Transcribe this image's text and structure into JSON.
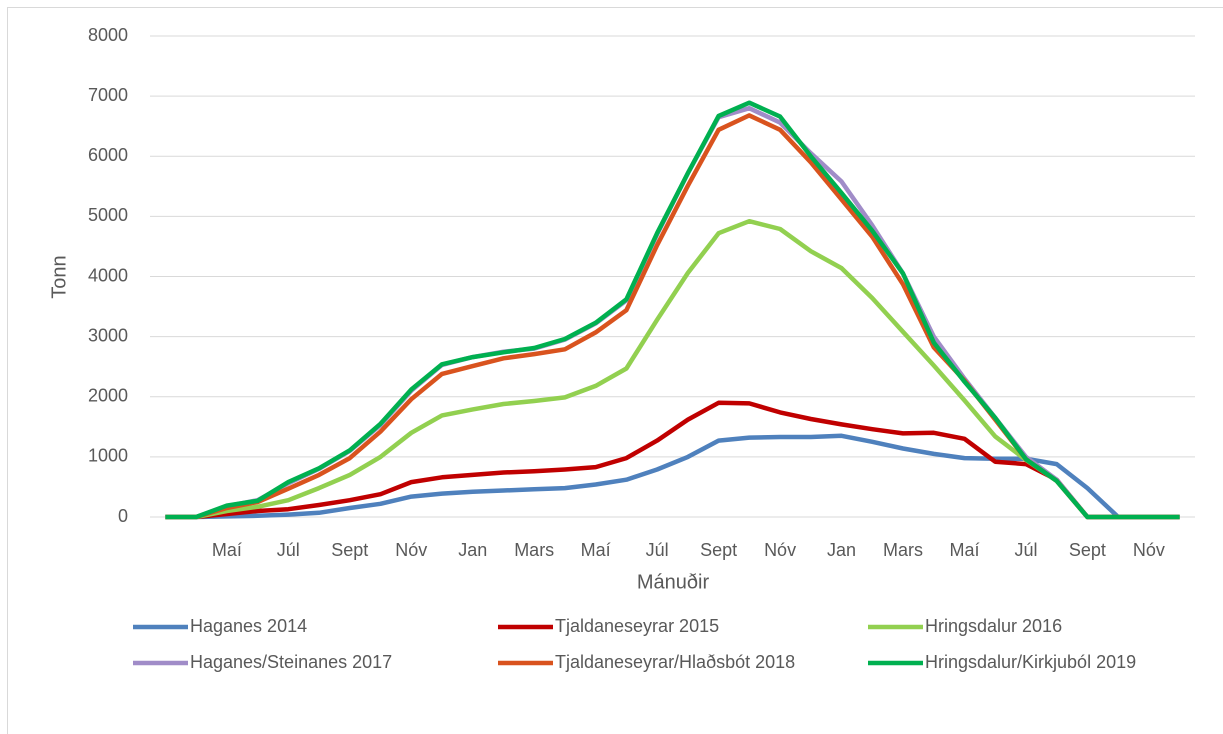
{
  "chart_data": {
    "type": "line",
    "xlabel": "Mánuðir",
    "ylabel": "Tonn",
    "categories": [
      null,
      null,
      "Maí",
      null,
      "Júl",
      null,
      "Sept",
      null,
      "Nóv",
      null,
      "Jan",
      null,
      "Mars",
      null,
      "Maí",
      null,
      "Júl",
      null,
      "Sept",
      null,
      "Nóv",
      null,
      "Jan",
      null,
      "Mars",
      null,
      "Maí",
      null,
      "Júl",
      null,
      "Sept",
      null,
      "Nóv",
      null
    ],
    "ylim": [
      0,
      8000
    ],
    "yticks": [
      0,
      1000,
      2000,
      3000,
      4000,
      5000,
      6000,
      7000,
      8000
    ],
    "grid": true,
    "legend": "bottom",
    "series": [
      {
        "name": "Haganes 2014",
        "color": "#4f81bd",
        "values": [
          0,
          0,
          10,
          20,
          40,
          70,
          150,
          220,
          340,
          390,
          420,
          440,
          460,
          480,
          540,
          620,
          790,
          1000,
          1270,
          1320,
          1330,
          1330,
          1350,
          1250,
          1140,
          1050,
          980,
          970,
          970,
          880,
          480,
          0,
          0,
          0
        ]
      },
      {
        "name": "Tjaldaneseyrar 2015",
        "color": "#c00000",
        "values": [
          0,
          0,
          50,
          100,
          130,
          200,
          280,
          380,
          580,
          660,
          700,
          740,
          760,
          790,
          830,
          980,
          1270,
          1620,
          1900,
          1890,
          1740,
          1630,
          1540,
          1460,
          1390,
          1400,
          1300,
          920,
          880,
          620,
          0,
          0,
          0,
          0
        ]
      },
      {
        "name": "Hringsdalur 2016",
        "color": "#92d050",
        "values": [
          0,
          0,
          100,
          170,
          280,
          480,
          700,
          1000,
          1400,
          1690,
          1790,
          1880,
          1930,
          1990,
          2180,
          2470,
          3280,
          4060,
          4720,
          4920,
          4790,
          4420,
          4140,
          3640,
          3080,
          2520,
          1940,
          1340,
          950,
          600,
          0,
          0,
          0,
          0
        ]
      },
      {
        "name": "Haganes/Steinanes 2017",
        "color": "#a08cc8",
        "values": [
          0,
          0,
          180,
          280,
          560,
          800,
          1100,
          1530,
          2100,
          2530,
          2660,
          2750,
          2800,
          2950,
          3220,
          3600,
          4700,
          5720,
          6650,
          6800,
          6560,
          6050,
          5580,
          4850,
          4050,
          3000,
          2300,
          1650,
          1000,
          620,
          0,
          0,
          0,
          0
        ]
      },
      {
        "name": "Tjaldaneseyrar/Hlaðsbót 2018",
        "color": "#d9531e",
        "values": [
          0,
          0,
          150,
          250,
          470,
          700,
          980,
          1420,
          1960,
          2380,
          2510,
          2640,
          2710,
          2790,
          3070,
          3440,
          4520,
          5510,
          6440,
          6680,
          6440,
          5900,
          5280,
          4660,
          3870,
          2820,
          2270,
          1620,
          960,
          600,
          0,
          0,
          0,
          0
        ]
      },
      {
        "name": "Hringsdalur/Kirkjuból 2019",
        "color": "#00b050",
        "values": [
          0,
          0,
          190,
          270,
          580,
          810,
          1110,
          1550,
          2120,
          2540,
          2660,
          2740,
          2810,
          2960,
          3230,
          3620,
          4720,
          5720,
          6670,
          6890,
          6660,
          6000,
          5390,
          4760,
          4050,
          2900,
          2250,
          1650,
          960,
          600,
          0,
          0,
          0,
          0
        ]
      }
    ]
  }
}
